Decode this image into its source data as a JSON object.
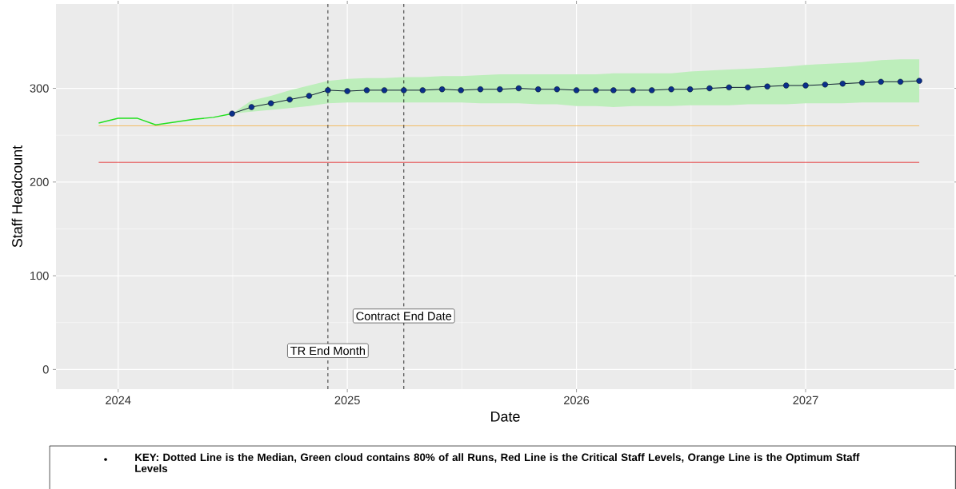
{
  "chart_data": {
    "type": "line",
    "xlabel": "Date",
    "ylabel": "Staff Headcount",
    "xlim": [
      "2023-09-24",
      "2027-08-26"
    ],
    "ylim": [
      -21,
      390
    ],
    "xticks": [
      {
        "value": "2024-01-01",
        "label": "2024"
      },
      {
        "value": "2025-01-01",
        "label": "2025"
      },
      {
        "value": "2026-01-01",
        "label": "2026"
      },
      {
        "value": "2027-01-01",
        "label": "2027"
      }
    ],
    "yticks": [
      0,
      100,
      200,
      300
    ],
    "grid": true,
    "series": [
      {
        "color": "#22e01e",
        "marker": "none",
        "x": [
          "2023-12",
          "2024-01",
          "2024-02",
          "2024-03",
          "2024-04",
          "2024-05",
          "2024-06",
          "2024-07"
        ],
        "values": [
          263,
          268,
          268,
          261,
          264,
          267,
          269,
          273
        ]
      },
      {
        "color": "#0a2f8a",
        "marker": "circle",
        "x": [
          "2024-07",
          "2024-08",
          "2024-09",
          "2024-10",
          "2024-11",
          "2024-12",
          "2025-01",
          "2025-02",
          "2025-03",
          "2025-04",
          "2025-05",
          "2025-06",
          "2025-07",
          "2025-08",
          "2025-09",
          "2025-10",
          "2025-11",
          "2025-12",
          "2026-01",
          "2026-02",
          "2026-03",
          "2026-04",
          "2026-05",
          "2026-06",
          "2026-07",
          "2026-08",
          "2026-09",
          "2026-10",
          "2026-11",
          "2026-12",
          "2027-01",
          "2027-02",
          "2027-03",
          "2027-04",
          "2027-05",
          "2027-06",
          "2027-07"
        ],
        "values": [
          273,
          280,
          284,
          288,
          292,
          298,
          297,
          298,
          298,
          298,
          298,
          299,
          298,
          299,
          299,
          300,
          299,
          299,
          298,
          298,
          298,
          298,
          298,
          299,
          299,
          300,
          301,
          301,
          302,
          303,
          303,
          304,
          305,
          306,
          307,
          307,
          308
        ],
        "upper": [
          273,
          287,
          292,
          298,
          303,
          308,
          310,
          311,
          311,
          312,
          312,
          313,
          313,
          314,
          315,
          315,
          315,
          315,
          315,
          315,
          316,
          316,
          316,
          316,
          318,
          319,
          320,
          321,
          322,
          323,
          325,
          326,
          327,
          328,
          330,
          331,
          331
        ],
        "lower": [
          273,
          275,
          277,
          279,
          281,
          284,
          285,
          285,
          285,
          285,
          285,
          285,
          285,
          284,
          284,
          284,
          283,
          283,
          281,
          281,
          280,
          281,
          281,
          281,
          282,
          282,
          282,
          283,
          283,
          283,
          284,
          284,
          284,
          285,
          285,
          285,
          285
        ]
      }
    ],
    "ref_lines": [
      {
        "axis": "y",
        "value": 260,
        "color": "#f5b041"
      },
      {
        "axis": "y",
        "value": 221,
        "color": "#e31a1c"
      },
      {
        "axis": "x",
        "value": "2024-12",
        "label": "TR End Month",
        "line_style": "dashed",
        "color": "#000000"
      },
      {
        "axis": "x",
        "value": "2025-04",
        "label": "Contract End Date",
        "line_style": "dashed",
        "color": "#000000"
      }
    ],
    "annotations": [
      "KEY: Dotted Line is the Median, Green cloud contains 80% of all Runs, Red Line is the Critical Staff Levels, Orange Line is the Optimum Staff Levels"
    ]
  }
}
